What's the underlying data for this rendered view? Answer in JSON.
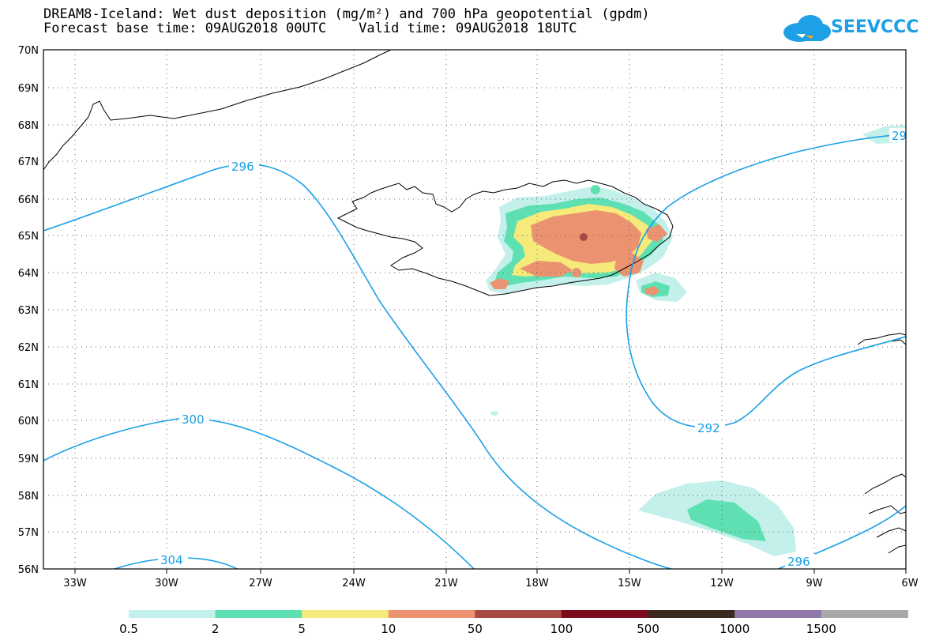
{
  "title": {
    "line1": "DREAM8-Iceland: Wet dust deposition (mg/m²) and 700 hPa geopotential (gpdm)",
    "line2": "Forecast base time: 09AUG2018 00UTC    Valid time: 09AUG2018 18UTC"
  },
  "logo": {
    "text": "SEEVCCC",
    "icon": "cloud-icon",
    "color": "#1ea0e6"
  },
  "map": {
    "lat_labels": [
      "70N",
      "69N",
      "68N",
      "67N",
      "66N",
      "65N",
      "64N",
      "63N",
      "62N",
      "61N",
      "60N",
      "59N",
      "58N",
      "57N",
      "56N"
    ],
    "lon_labels": [
      "33W",
      "30W",
      "27W",
      "24W",
      "21W",
      "18W",
      "15W",
      "12W",
      "9W",
      "6W"
    ],
    "contour_color": "#1aa0e6",
    "contour_labels": [
      "296",
      "300",
      "304",
      "292",
      "296",
      "29"
    ]
  },
  "legend": {
    "colors": [
      "#c3f0ea",
      "#5ee0b2",
      "#f5ea7a",
      "#eb9370",
      "#a64a44",
      "#7a0c1e",
      "#3b2a1f",
      "#9278a8",
      "#a8a8a8"
    ],
    "labels": [
      "0.5",
      "2",
      "5",
      "10",
      "50",
      "100",
      "500",
      "1000",
      "1500"
    ]
  }
}
